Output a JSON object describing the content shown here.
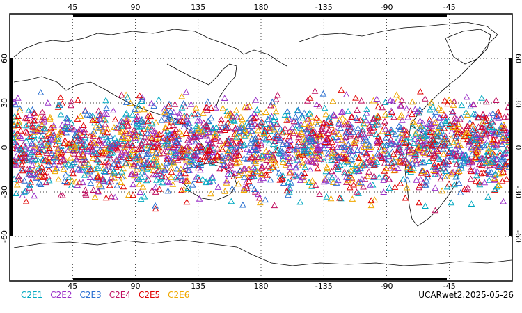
{
  "map": {
    "projection": "equirectangular",
    "center_longitude": 180,
    "latitude_range": [
      -90,
      90
    ],
    "lon_ticks": [
      "45",
      "90",
      "135",
      "180",
      "-135",
      "-90",
      "-45"
    ],
    "lat_ticks": [
      "60",
      "30",
      "0",
      "-30",
      "-60"
    ],
    "observation_lat_range": [
      -45,
      45
    ],
    "marker": "open-triangle-icon"
  },
  "legend": {
    "items": [
      {
        "label": "C2E1",
        "color": "#00a8c0"
      },
      {
        "label": "C2E2",
        "color": "#9b30c8"
      },
      {
        "label": "C2E3",
        "color": "#2a6fd0"
      },
      {
        "label": "C2E4",
        "color": "#c01060"
      },
      {
        "label": "C2E5",
        "color": "#e00000"
      },
      {
        "label": "C2E6",
        "color": "#f0a800"
      }
    ]
  },
  "caption": "UCARwet2.2025-05-26"
}
